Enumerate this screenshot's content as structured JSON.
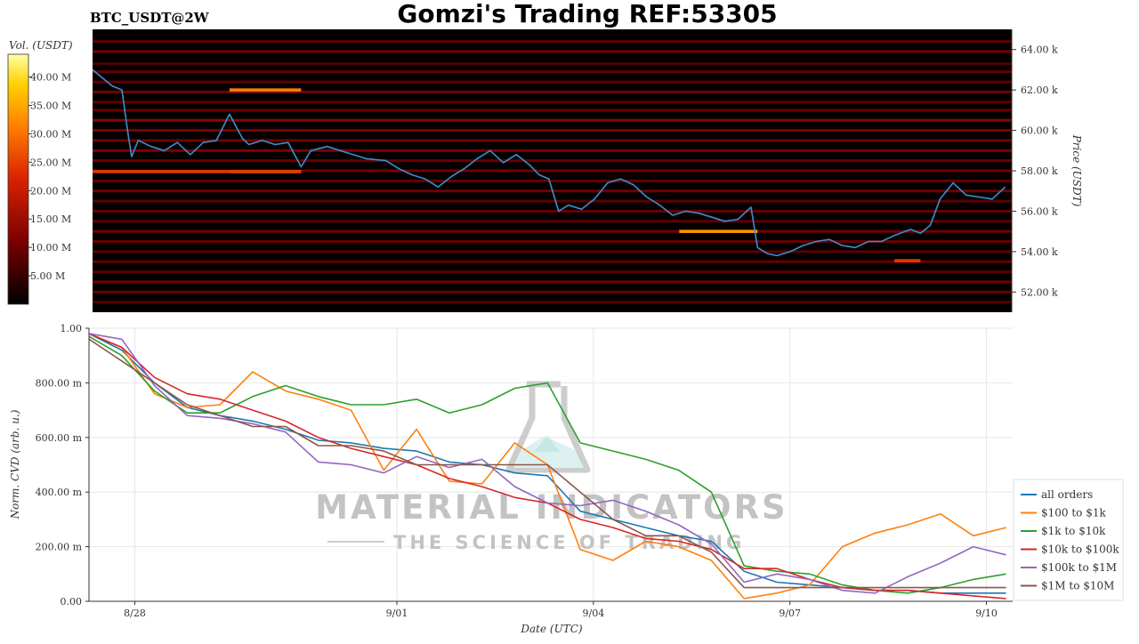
{
  "header": {
    "symbol": "BTC_USDT@2W",
    "title": "Gomzi's Trading REF:53305"
  },
  "watermark": {
    "main": "MATERIAL INDICATORS",
    "sub": "THE SCIENCE OF TRADING"
  },
  "colors": {
    "heatmap_bg": "#050000",
    "price_line": "#3a8fd0",
    "series": [
      "#1f77b4",
      "#ff7f0e",
      "#2ca02c",
      "#d62728",
      "#9467bd",
      "#8c564b"
    ]
  },
  "chart_data": [
    {
      "type": "heatmap",
      "title": "",
      "colorbar": {
        "label": "Vol. (USDT)",
        "range": [
          0,
          44000000
        ],
        "ticks": [
          "5.00 M",
          "10.00 M",
          "15.00 M",
          "20.00 M",
          "25.00 M",
          "30.00 M",
          "35.00 M",
          "40.00 M"
        ],
        "tick_values": [
          5,
          10,
          15,
          20,
          25,
          30,
          35,
          40
        ],
        "colors": [
          "#000000",
          "#7a0000",
          "#d82200",
          "#ff7a00",
          "#ffd000",
          "#ffffa8"
        ]
      },
      "ylabel": "Price (USDT)",
      "ylim": [
        51000,
        65000
      ],
      "yticks": [
        "52.00 k",
        "54.00 k",
        "56.00 k",
        "58.00 k",
        "60.00 k",
        "62.00 k",
        "64.00 k"
      ],
      "ytick_values": [
        52000,
        54000,
        56000,
        58000,
        60000,
        62000,
        64000
      ],
      "xlim": [
        0,
        14.1
      ],
      "levels": [
        {
          "price": 64400,
          "intensity": 0.4
        },
        {
          "price": 63900,
          "intensity": 0.5
        },
        {
          "price": 63300,
          "intensity": 0.35
        },
        {
          "price": 62900,
          "intensity": 0.45
        },
        {
          "price": 62400,
          "intensity": 0.4
        },
        {
          "price": 61900,
          "intensity": 0.5
        },
        {
          "price": 61400,
          "intensity": 0.4
        },
        {
          "price": 61000,
          "intensity": 0.45
        },
        {
          "price": 60500,
          "intensity": 0.6
        },
        {
          "price": 60000,
          "intensity": 0.55
        },
        {
          "price": 59500,
          "intensity": 0.5
        },
        {
          "price": 59000,
          "intensity": 0.55
        },
        {
          "price": 58500,
          "intensity": 0.45
        },
        {
          "price": 58000,
          "intensity": 0.5
        },
        {
          "price": 57500,
          "intensity": 0.45
        },
        {
          "price": 57000,
          "intensity": 0.5
        },
        {
          "price": 56500,
          "intensity": 0.4
        },
        {
          "price": 56000,
          "intensity": 0.45
        },
        {
          "price": 55500,
          "intensity": 0.4
        },
        {
          "price": 55000,
          "intensity": 0.5
        },
        {
          "price": 54500,
          "intensity": 0.45
        },
        {
          "price": 54000,
          "intensity": 0.4
        },
        {
          "price": 53500,
          "intensity": 0.45
        },
        {
          "price": 53000,
          "intensity": 0.4
        },
        {
          "price": 52500,
          "intensity": 0.5
        },
        {
          "price": 52000,
          "intensity": 0.45
        },
        {
          "price": 51500,
          "intensity": 0.35
        }
      ],
      "hotspots": [
        {
          "x_start": 2.1,
          "x_end": 3.2,
          "price": 57960,
          "intensity": 0.85
        },
        {
          "x_start": 0.0,
          "x_end": 3.2,
          "price": 57960,
          "intensity": 0.55
        },
        {
          "x_start": 2.1,
          "x_end": 3.2,
          "price": 62000,
          "intensity": 0.7
        },
        {
          "x_start": 9.0,
          "x_end": 10.2,
          "price": 55000,
          "intensity": 0.75
        },
        {
          "x_start": 12.3,
          "x_end": 12.7,
          "price": 53550,
          "intensity": 0.55
        }
      ],
      "series": [
        {
          "x": [
            0.0,
            0.15,
            0.3,
            0.45,
            0.55,
            0.6,
            0.7,
            0.9,
            1.1,
            1.3,
            1.5,
            1.7,
            1.9,
            2.1,
            2.3,
            2.4,
            2.6,
            2.8,
            3.0,
            3.2,
            3.35,
            3.6,
            3.9,
            4.2,
            4.5,
            4.7,
            4.9,
            5.1,
            5.3,
            5.5,
            5.7,
            5.9,
            6.1,
            6.3,
            6.5,
            6.7,
            6.85,
            7.0,
            7.15,
            7.3,
            7.5,
            7.7,
            7.9,
            8.1,
            8.3,
            8.5,
            8.7,
            8.9,
            9.1,
            9.3,
            9.5,
            9.7,
            9.9,
            10.1,
            10.2,
            10.35,
            10.5,
            10.7,
            10.9,
            11.1,
            11.3,
            11.5,
            11.7,
            11.9,
            12.1,
            12.3,
            12.55,
            12.7,
            12.85,
            13.0,
            13.2,
            13.4,
            13.6,
            13.8,
            14.0
          ],
          "y": [
            63000,
            62600,
            62200,
            62000,
            59700,
            58700,
            59500,
            59200,
            59000,
            59400,
            58800,
            59400,
            59500,
            60800,
            59600,
            59300,
            59500,
            59300,
            59400,
            58200,
            59000,
            59200,
            58900,
            58600,
            58500,
            58100,
            57800,
            57600,
            57200,
            57700,
            58100,
            58600,
            59000,
            58400,
            58800,
            58300,
            57800,
            57600,
            56000,
            56300,
            56100,
            56600,
            57400,
            57600,
            57300,
            56700,
            56300,
            55800,
            56000,
            55900,
            55700,
            55500,
            55600,
            56200,
            54200,
            53900,
            53800,
            54000,
            54300,
            54500,
            54600,
            54300,
            54200,
            54500,
            54500,
            54800,
            55100,
            54900,
            55300,
            56600,
            57400,
            56800,
            56700,
            56600,
            57200
          ]
        }
      ]
    },
    {
      "type": "line",
      "title": "",
      "xlabel": "Date (UTC)",
      "ylabel": "Norm. CVD (arb. u.)",
      "xlim": [
        0,
        14.1
      ],
      "ylim": [
        0,
        1.0
      ],
      "xticks": [
        "8/28",
        "9/01",
        "9/04",
        "9/07",
        "9/10"
      ],
      "xtick_values": [
        0.7,
        4.7,
        7.7,
        10.7,
        13.7
      ],
      "yticks": [
        "0.00",
        "200.00 m",
        "400.00 m",
        "600.00 m",
        "800.00 m",
        "1.00"
      ],
      "ytick_values": [
        0,
        0.2,
        0.4,
        0.6,
        0.8,
        1.0
      ],
      "legend_position": "right",
      "x": [
        0.0,
        0.5,
        1.0,
        1.5,
        2.0,
        2.5,
        3.0,
        3.5,
        4.0,
        4.5,
        5.0,
        5.5,
        6.0,
        6.5,
        7.0,
        7.5,
        8.0,
        8.5,
        9.0,
        9.5,
        10.0,
        10.5,
        11.0,
        11.5,
        12.0,
        12.5,
        13.0,
        13.5,
        14.0
      ],
      "series": [
        {
          "name": "all orders",
          "values": [
            0.98,
            0.92,
            0.8,
            0.71,
            0.68,
            0.66,
            0.63,
            0.59,
            0.58,
            0.56,
            0.55,
            0.51,
            0.5,
            0.47,
            0.46,
            0.33,
            0.3,
            0.27,
            0.24,
            0.22,
            0.11,
            0.07,
            0.06,
            0.05,
            0.04,
            0.04,
            0.03,
            0.03,
            0.03
          ]
        },
        {
          "name": "$100 to $1k",
          "values": [
            0.98,
            0.93,
            0.76,
            0.71,
            0.72,
            0.84,
            0.77,
            0.74,
            0.7,
            0.48,
            0.63,
            0.44,
            0.43,
            0.58,
            0.5,
            0.19,
            0.15,
            0.22,
            0.2,
            0.15,
            0.01,
            0.03,
            0.06,
            0.2,
            0.25,
            0.28,
            0.32,
            0.24,
            0.27
          ]
        },
        {
          "name": "$1k to $10k",
          "values": [
            0.97,
            0.9,
            0.77,
            0.69,
            0.69,
            0.75,
            0.79,
            0.75,
            0.72,
            0.72,
            0.74,
            0.69,
            0.72,
            0.78,
            0.8,
            0.58,
            0.55,
            0.52,
            0.48,
            0.4,
            0.13,
            0.11,
            0.1,
            0.06,
            0.04,
            0.03,
            0.05,
            0.08,
            0.1
          ]
        },
        {
          "name": "$10k to $100k",
          "values": [
            0.98,
            0.93,
            0.82,
            0.76,
            0.74,
            0.7,
            0.66,
            0.6,
            0.56,
            0.53,
            0.5,
            0.45,
            0.42,
            0.38,
            0.36,
            0.3,
            0.27,
            0.23,
            0.22,
            0.19,
            0.12,
            0.12,
            0.08,
            0.05,
            0.04,
            0.04,
            0.03,
            0.02,
            0.01
          ]
        },
        {
          "name": "$100k to $1M",
          "values": [
            0.98,
            0.96,
            0.79,
            0.68,
            0.67,
            0.65,
            0.62,
            0.51,
            0.5,
            0.47,
            0.53,
            0.49,
            0.52,
            0.42,
            0.36,
            0.35,
            0.37,
            0.33,
            0.28,
            0.21,
            0.07,
            0.1,
            0.08,
            0.04,
            0.03,
            0.09,
            0.14,
            0.2,
            0.17
          ]
        },
        {
          "name": "$1M to $10M",
          "values": [
            0.96,
            0.88,
            0.8,
            0.72,
            0.68,
            0.64,
            0.64,
            0.57,
            0.57,
            0.55,
            0.5,
            0.5,
            0.5,
            0.5,
            0.5,
            0.4,
            0.3,
            0.24,
            0.24,
            0.18,
            0.05,
            0.05,
            0.05,
            0.05,
            0.05,
            0.05,
            0.05,
            0.05,
            0.05
          ]
        }
      ]
    }
  ]
}
